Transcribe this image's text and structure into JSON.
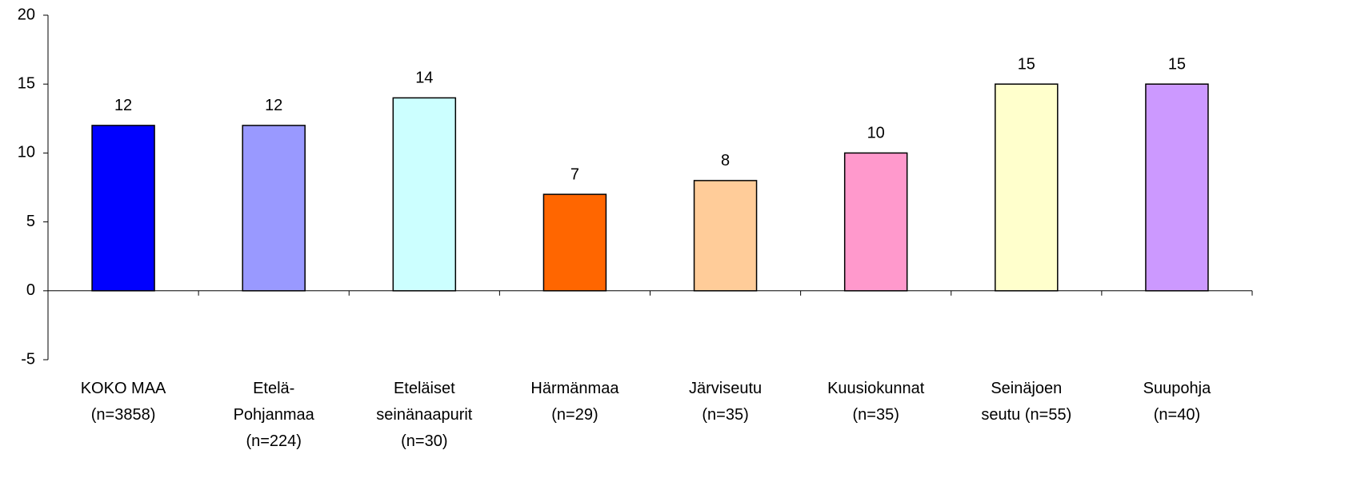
{
  "chart_data": {
    "type": "bar",
    "categories": [
      "KOKO MAA\n(n=3858)",
      "Etelä-\nPohjanmaa\n(n=224)",
      "Eteläiset\nseinänaapurit\n(n=30)",
      "Härmänmaa\n(n=29)",
      "Järviseutu\n(n=35)",
      "Kuusiokunnat\n(n=35)",
      "Seinäjoen\nseutu (n=55)",
      "Suupohja\n(n=40)"
    ],
    "values": [
      12,
      12,
      14,
      7,
      8,
      10,
      15,
      15
    ],
    "colors": [
      "#0000ff",
      "#9999ff",
      "#ccffff",
      "#ff6600",
      "#ffcc99",
      "#ff99cc",
      "#ffffcc",
      "#cc99ff"
    ],
    "ylim": [
      -5,
      20
    ],
    "yticks": [
      -5,
      0,
      5,
      10,
      15,
      20
    ],
    "grid": false
  }
}
